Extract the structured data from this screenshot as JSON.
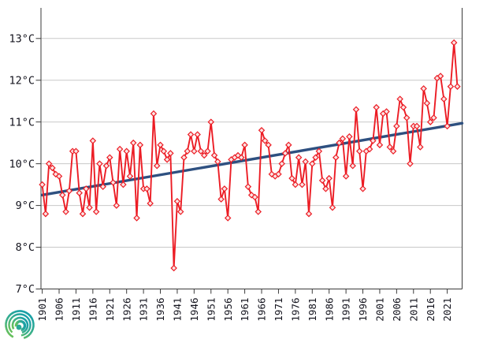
{
  "page": {
    "title": "",
    "background": "#ffffff"
  },
  "y_axis": {
    "labels": [
      "13°C",
      "12°C",
      "11°C",
      "10°C",
      "9°C",
      "8°C",
      "7°C"
    ],
    "values": [
      13,
      12,
      11,
      10,
      9,
      8,
      7
    ]
  },
  "x_axis": {
    "labels": [
      "1901",
      "1906",
      "1911",
      "1916",
      "1921",
      "1926",
      "1931",
      "1936",
      "1941",
      "1946",
      "1951",
      "1956",
      "1961",
      "1966",
      "1971",
      "1976",
      "1981",
      "1986",
      "1991",
      "1996",
      "2001",
      "2006",
      "2011",
      "2016",
      "2021"
    ]
  },
  "chart_data": {
    "type": "line",
    "title": "",
    "xlabel": "",
    "ylabel": "",
    "ylim": [
      7,
      13
    ],
    "xlim": [
      1900.5,
      2025.5
    ],
    "grid": "horizontal",
    "legend": "none",
    "x_start_year": 1901,
    "x_end_year": 2024,
    "series": [
      {
        "name": "annual-mean-temperature",
        "color": "#ec1c24",
        "marker": "diamond",
        "values": [
          9.5,
          8.8,
          10.0,
          9.9,
          9.75,
          9.7,
          9.25,
          8.85,
          9.35,
          10.3,
          10.3,
          9.3,
          8.8,
          9.4,
          8.95,
          10.55,
          8.85,
          10.0,
          9.45,
          9.95,
          10.15,
          9.55,
          9.0,
          10.35,
          9.5,
          10.3,
          9.7,
          10.5,
          8.7,
          10.45,
          9.4,
          9.4,
          9.05,
          11.2,
          9.95,
          10.45,
          10.3,
          10.1,
          10.25,
          7.5,
          9.1,
          8.85,
          10.15,
          10.3,
          10.7,
          10.3,
          10.7,
          10.3,
          10.2,
          10.3,
          11.0,
          10.2,
          10.05,
          9.15,
          9.4,
          8.7,
          10.1,
          10.15,
          10.2,
          10.15,
          10.45,
          9.45,
          9.25,
          9.2,
          8.85,
          10.8,
          10.55,
          10.45,
          9.75,
          9.7,
          9.75,
          10.0,
          10.25,
          10.45,
          9.65,
          9.5,
          10.15,
          9.5,
          10.05,
          8.8,
          10.0,
          10.15,
          10.3,
          9.6,
          9.4,
          9.65,
          8.95,
          10.15,
          10.5,
          10.6,
          9.7,
          10.65,
          9.95,
          11.3,
          10.3,
          9.4,
          10.3,
          10.35,
          10.55,
          11.35,
          10.45,
          11.2,
          11.25,
          10.4,
          10.3,
          10.9,
          11.55,
          11.35,
          11.1,
          10.0,
          10.9,
          10.9,
          10.4,
          11.8,
          11.45,
          11.0,
          11.1,
          12.05,
          12.1,
          11.55,
          10.9,
          11.85,
          12.9,
          11.85
        ]
      }
    ],
    "trend_line": {
      "name": "linear-trend",
      "color": "#2e5080",
      "start_year": 1901,
      "start_value": 9.25,
      "end_year": 2025.4,
      "end_value": 10.97
    }
  },
  "colors": {
    "series_red": "#ec1c24",
    "marker_fill": "#fbe3e3",
    "trend_blue": "#2e5080",
    "gridline": "#c8c8c8",
    "axis": "#3a3a3a",
    "label_text": "#14141e"
  },
  "logo": {
    "name": "spiral-logo",
    "colors": [
      "#19a0a8",
      "#3bb08b",
      "#67c05b"
    ]
  }
}
